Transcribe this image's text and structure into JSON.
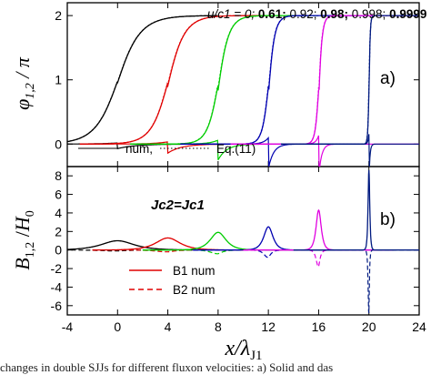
{
  "caption": "changes in double SJJs for different fluxon velocities: a) Solid and das",
  "chart_data": [
    {
      "type": "line",
      "panel": "top",
      "panel_label": "a)",
      "ylabel": "φ1,2 / π",
      "xlim": [
        -4,
        24
      ],
      "ylim": [
        -0.35,
        2.2
      ],
      "yticks": [
        0,
        1,
        2
      ],
      "velocity_header": {
        "prefix": "u/c1 = 0;",
        "values": [
          {
            "text": "0.61;",
            "bold": true
          },
          {
            "text": "0.92;",
            "bold": false
          },
          {
            "text": "0.98;",
            "bold": true
          },
          {
            "text": "0.998;",
            "bold": false
          },
          {
            "text": "0.9999",
            "bold": true
          }
        ]
      },
      "series": [
        {
          "u": "0",
          "x0": 0,
          "color": "#000000"
        },
        {
          "u": "0.61",
          "x0": 4,
          "color": "#e00000"
        },
        {
          "u": "0.92",
          "x0": 8,
          "color": "#00cc00"
        },
        {
          "u": "0.98",
          "x0": 12,
          "color": "#0000b0"
        },
        {
          "u": "0.998",
          "x0": 16,
          "color": "#e000e0"
        },
        {
          "u": "0.9999",
          "x0": 20,
          "color": "#001a80"
        }
      ],
      "legend": [
        {
          "label": "num,",
          "style": "solid"
        },
        {
          "label": "Eq.(11)",
          "style": "dotted"
        }
      ]
    },
    {
      "type": "line",
      "panel": "bottom",
      "panel_label": "b)",
      "ylabel": "B1,2 / H0",
      "xlabel": "x/λJ1",
      "xlim": [
        -4,
        24
      ],
      "ylim": [
        -7,
        9
      ],
      "xticks": [
        -4,
        0,
        4,
        8,
        12,
        16,
        20,
        24
      ],
      "yticks": [
        -6,
        -4,
        -2,
        0,
        2,
        4,
        6,
        8
      ],
      "annotation": "Jc2=Jc1",
      "peaks": [
        {
          "x0": 0,
          "B1_peak": 1.0,
          "B2_min": -0.1
        },
        {
          "x0": 4,
          "B1_peak": 1.3,
          "B2_min": -0.2
        },
        {
          "x0": 8,
          "B1_peak": 1.9,
          "B2_min": -0.4
        },
        {
          "x0": 12,
          "B1_peak": 2.5,
          "B2_min": -0.8
        },
        {
          "x0": 16,
          "B1_peak": 4.3,
          "B2_min": -1.8
        },
        {
          "x0": 20,
          "B1_peak": 8.6,
          "B2_min": -6.8
        }
      ],
      "legend": [
        {
          "label": "B1 num",
          "style": "solid",
          "color": "#e00000"
        },
        {
          "label": "B2 num",
          "style": "dashed",
          "color": "#e00000"
        }
      ]
    }
  ]
}
